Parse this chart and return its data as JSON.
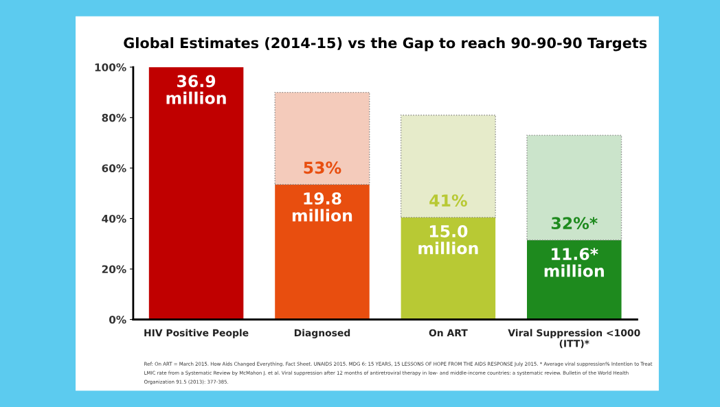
{
  "chart_data": {
    "type": "bar",
    "title": "Global Estimates (2014-15) vs the Gap to reach 90-90-90 Targets",
    "categories": [
      "HIV Positive People",
      "Diagnosed",
      "On ART",
      "Viral Suppression <1000\n(ITT)*"
    ],
    "stacked": true,
    "legend": false,
    "grid": false,
    "series": [
      {
        "colors": [
          "#c00000",
          "#e84e0f",
          "#b8c934",
          "#1e8a1e"
        ],
        "values": [
          100,
          53.5,
          40.5,
          31.5
        ]
      },
      {
        "colors": [
          "#c00000",
          "#f4cbbb",
          "#e6ebca",
          "#cbe4cb"
        ],
        "values": [
          0,
          36.5,
          40.5,
          41.5
        ],
        "line_style": "dotted"
      }
    ],
    "ylim": [
      0,
      100
    ],
    "yticks": [
      {
        "value": 0,
        "label": "0%"
      },
      {
        "value": 20,
        "label": "20%"
      },
      {
        "value": 40,
        "label": "40%"
      },
      {
        "value": 60,
        "label": "60%"
      },
      {
        "value": 80,
        "label": "80%"
      },
      {
        "value": 100,
        "label": "100%"
      }
    ],
    "annotations": [
      "36.9\nmillion",
      "53%",
      "19.8\nmillion",
      "41%",
      "15.0\nmillion",
      "32%*",
      "11.6*\nmillion",
      "Ref: On ART = March 2015. How Aids Changed Everything. Fact Sheet. UNAIDS 2015. MDG 6: 15 YEARS, 15 LESSONS OF HOPE FROM THE AIDS RESPONSE July 2015. * Average viral suppression% Intention to Treat",
      "LMIC rate from a Systematic Review by McMahon J. et al. Viral suppression after 12 months of antiretroviral therapy in low- and middle-income countries: a systematic review. Bulletin of the World Health",
      "Organization 91.5 (2013): 377-385."
    ]
  }
}
